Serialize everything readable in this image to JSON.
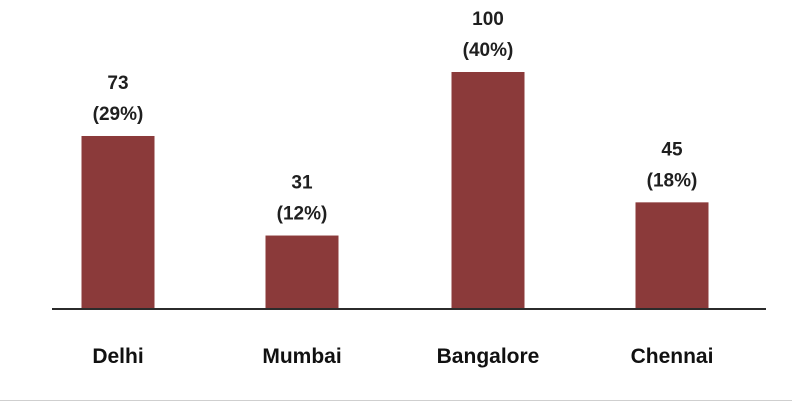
{
  "chart_data": {
    "type": "bar",
    "title": "",
    "xlabel": "",
    "ylabel": "",
    "categories": [
      "Delhi",
      "Mumbai",
      "Bangalore",
      "Chennai"
    ],
    "values": [
      73,
      31,
      100,
      45
    ],
    "data_labels": [
      {
        "value": "73",
        "percent": "(29%)"
      },
      {
        "value": "31",
        "percent": "(12%)"
      },
      {
        "value": "100",
        "percent": "(40%)"
      },
      {
        "value": "45",
        "percent": "(18%)"
      }
    ],
    "ylim": [
      0,
      100
    ],
    "grid": false,
    "legend": "none",
    "bar_color": "#8b3a3a",
    "axis_color": "#2b2b2b"
  }
}
